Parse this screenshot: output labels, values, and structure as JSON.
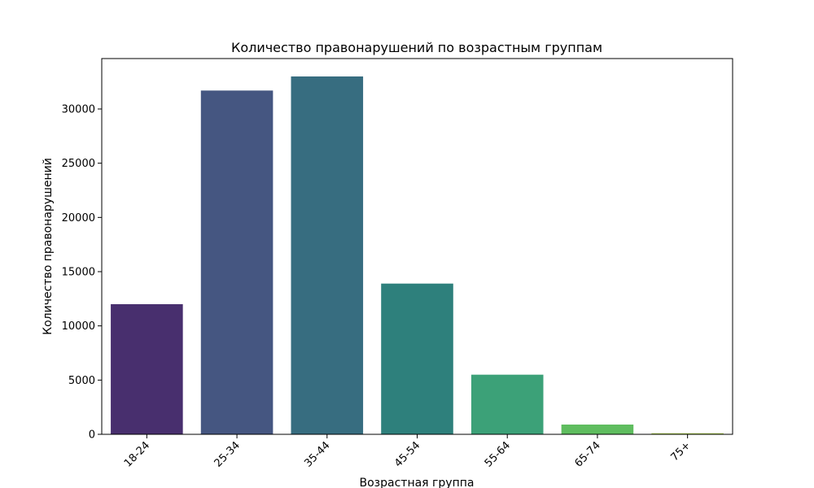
{
  "chart_data": {
    "type": "bar",
    "title": "Количество правонарушений по возрастным группам",
    "xlabel": "Возрастная группа",
    "ylabel": "Количество правонарушений",
    "categories": [
      "18-24",
      "25-34",
      "35-44",
      "45-54",
      "55-64",
      "65-74",
      "75+"
    ],
    "values": [
      12000,
      31700,
      33000,
      13900,
      5500,
      900,
      100
    ],
    "colors": [
      "#482f6e",
      "#455681",
      "#376d80",
      "#2e807c",
      "#3ca178",
      "#5fbd5f",
      "#aacd4d"
    ],
    "ylim": [
      0,
      34650
    ],
    "yticks": [
      0,
      5000,
      10000,
      15000,
      20000,
      25000,
      30000
    ],
    "ytick_labels": [
      "0",
      "5000",
      "10000",
      "15000",
      "20000",
      "25000",
      "30000"
    ],
    "grid": false,
    "legend": "none"
  }
}
